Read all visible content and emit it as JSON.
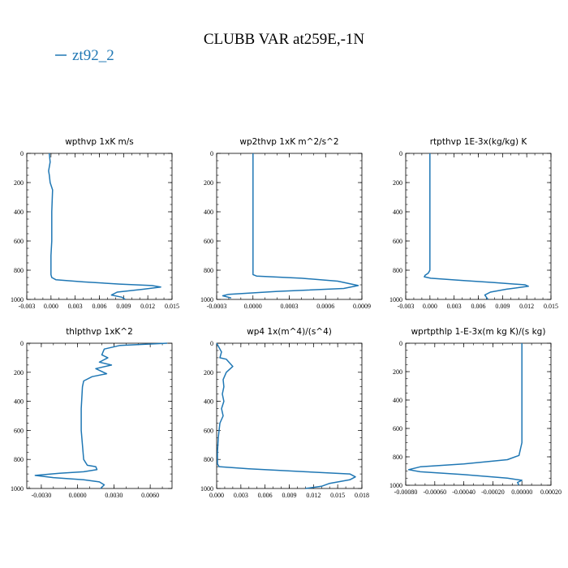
{
  "figure": {
    "title": "CLUBB VAR at259E,-1N",
    "legend_label": "zt92_2",
    "line_color": "#1f77b4"
  },
  "chart_data": [
    {
      "type": "line",
      "title": "wpthvp  1xK m/s",
      "xlim": [
        -0.003,
        0.015
      ],
      "ylim": [
        1000,
        0
      ],
      "xticks": [
        "-0.003",
        "0.000",
        "0.003",
        "0.006",
        "0.009",
        "0.012",
        "0.015"
      ],
      "yticks": [
        "0",
        "200",
        "400",
        "600",
        "800",
        "1000"
      ],
      "series": [
        {
          "x": [
            -0.0002,
            -0.0001,
            -0.0003,
            -0.0002,
            -0.0001,
            0.0002,
            0.0001,
            0.0001,
            0.0001,
            0.0,
            0.0,
            0.0001,
            0.0006,
            0.004,
            0.0085,
            0.0125,
            0.0136,
            0.0115,
            0.0082,
            0.0075,
            0.0088,
            0.0092
          ],
          "y": [
            0,
            60,
            120,
            150,
            200,
            250,
            400,
            500,
            600,
            700,
            830,
            850,
            865,
            880,
            895,
            905,
            915,
            930,
            950,
            970,
            985,
            1000
          ]
        }
      ]
    },
    {
      "type": "line",
      "title": "wp2thvp  1xK m^2/s^2",
      "xlim": [
        -0.0003,
        0.0009
      ],
      "ylim": [
        1000,
        0
      ],
      "xticks": [
        "-0.0003",
        "0.0000",
        "0.0003",
        "0.0006",
        "0.0009"
      ],
      "yticks": [
        "0",
        "200",
        "400",
        "600",
        "800",
        "1000"
      ],
      "series": [
        {
          "x": [
            0.0,
            0.0,
            0.0,
            0.0,
            0.0,
            0.0,
            0.0,
            3e-05,
            0.0004,
            0.0007,
            0.00087,
            0.00075,
            0.0002,
            -0.0002,
            -0.00025,
            -0.00018
          ],
          "y": [
            0,
            100,
            300,
            500,
            700,
            800,
            830,
            840,
            855,
            875,
            905,
            925,
            945,
            965,
            975,
            990
          ]
        }
      ]
    },
    {
      "type": "line",
      "title": "rtpthvp  1E-3x(kg/kg) K",
      "xlim": [
        -0.003,
        0.015
      ],
      "ylim": [
        1000,
        0
      ],
      "xticks": [
        "-0.003",
        "0.000",
        "0.003",
        "0.006",
        "0.009",
        "0.012",
        "0.015"
      ],
      "yticks": [
        "0",
        "200",
        "400",
        "600",
        "800",
        "1000"
      ],
      "series": [
        {
          "x": [
            0.0,
            0.0,
            0.0,
            0.0,
            0.0,
            -0.0002,
            -0.0006,
            -0.0007,
            0.0001,
            0.004,
            0.008,
            0.0118,
            0.0122,
            0.0095,
            0.0075,
            0.0068,
            0.007,
            0.0072
          ],
          "y": [
            0,
            150,
            400,
            600,
            800,
            820,
            835,
            845,
            855,
            870,
            885,
            900,
            910,
            930,
            950,
            970,
            985,
            1000
          ]
        }
      ]
    },
    {
      "type": "line",
      "title": "thlpthvp  1xK^2",
      "xlim": [
        -0.0042,
        0.0078
      ],
      "ylim": [
        1000,
        0
      ],
      "xticks": [
        "-0.0030",
        "0.0000",
        "0.0030",
        "0.0060"
      ],
      "yticks": [
        "0",
        "200",
        "400",
        "600",
        "800",
        "1000"
      ],
      "series": [
        {
          "x": [
            0.0074,
            0.0035,
            0.0022,
            0.002,
            0.0025,
            0.0018,
            0.0028,
            0.0015,
            0.0024,
            0.0012,
            0.0005,
            0.0004,
            0.0003,
            0.0003,
            0.0004,
            0.0005,
            0.0008,
            0.0015,
            0.0016,
            0.0005,
            -0.0015,
            -0.0035,
            -0.002,
            0.0005,
            0.0018,
            0.0022,
            0.0019
          ],
          "y": [
            0,
            15,
            40,
            80,
            100,
            130,
            150,
            175,
            210,
            230,
            260,
            300,
            450,
            600,
            700,
            800,
            840,
            850,
            870,
            885,
            895,
            910,
            925,
            940,
            955,
            975,
            1000
          ]
        }
      ]
    },
    {
      "type": "line",
      "title": "wp4  1x(m^4)/(s^4)",
      "xlim": [
        0.0,
        0.018
      ],
      "ylim": [
        1000,
        0
      ],
      "xticks": [
        "0.000",
        "0.003",
        "0.006",
        "0.009",
        "0.012",
        "0.015",
        "0.018"
      ],
      "yticks": [
        "0",
        "200",
        "400",
        "600",
        "800",
        "1000"
      ],
      "series": [
        {
          "x": [
            0.0,
            0.0006,
            0.0004,
            0.0012,
            0.002,
            0.0012,
            0.0008,
            0.0009,
            0.0007,
            0.0009,
            0.0006,
            0.0008,
            0.0004,
            0.0002,
            0.0001,
            0.0001,
            0.0003,
            0.004,
            0.011,
            0.0165,
            0.0172,
            0.0165,
            0.014,
            0.013,
            0.011
          ],
          "y": [
            0,
            60,
            100,
            110,
            160,
            200,
            250,
            300,
            350,
            400,
            450,
            500,
            550,
            650,
            750,
            830,
            850,
            865,
            885,
            900,
            920,
            940,
            965,
            985,
            1000
          ]
        }
      ]
    },
    {
      "type": "line",
      "title": "wprtpthlp  1-E-3x(m kg K)/(s kg)",
      "xlim": [
        -0.0008,
        0.0002
      ],
      "ylim": [
        1000,
        0
      ],
      "xticks": [
        "-0.00080",
        "-0.00060",
        "-0.00040",
        "-0.00020",
        "0.00000",
        "0.00020"
      ],
      "yticks": [
        "0",
        "200",
        "400",
        "600",
        "800",
        "1000"
      ],
      "series": [
        {
          "x": [
            0.0,
            0.0,
            0.0,
            0.0,
            -2e-05,
            -0.0001,
            -0.0004,
            -0.0007,
            -0.00078,
            -0.0007,
            -0.0004,
            -0.0001,
            0.0,
            -3e-05,
            -2e-05
          ],
          "y": [
            0,
            200,
            500,
            700,
            790,
            820,
            850,
            870,
            890,
            905,
            925,
            950,
            965,
            980,
            1000
          ]
        }
      ]
    }
  ]
}
